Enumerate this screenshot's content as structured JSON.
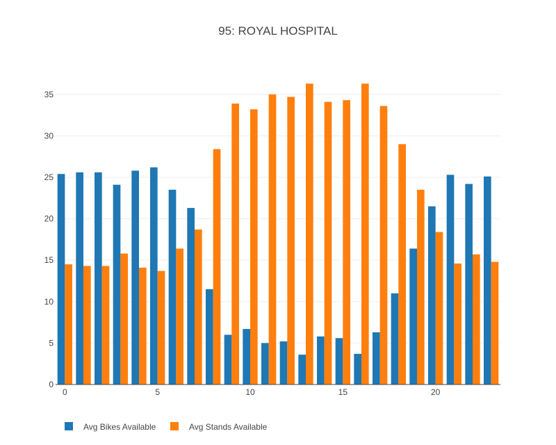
{
  "chart_data": {
    "type": "bar",
    "title": "95: ROYAL HOSPITAL",
    "xlabel": "",
    "ylabel": "",
    "x": [
      0,
      1,
      2,
      3,
      4,
      5,
      6,
      7,
      8,
      9,
      10,
      11,
      12,
      13,
      14,
      15,
      16,
      17,
      18,
      19,
      20,
      21,
      22,
      23
    ],
    "x_ticks": [
      0,
      5,
      10,
      15,
      20
    ],
    "y_ticks": [
      0,
      5,
      10,
      15,
      20,
      25,
      30,
      35
    ],
    "xlim": [
      -0.5,
      23.5
    ],
    "ylim": [
      0,
      38
    ],
    "grid": "horizontal",
    "legend_placement": "bottom-left",
    "series": [
      {
        "name": "Avg Bikes Available",
        "color": "#1f77b4",
        "values": [
          25.4,
          25.6,
          25.6,
          24.1,
          25.8,
          26.2,
          23.5,
          21.3,
          11.5,
          6.0,
          6.7,
          5.0,
          5.2,
          3.6,
          5.8,
          5.6,
          3.7,
          6.3,
          11.0,
          16.4,
          21.5,
          25.3,
          24.2,
          25.1
        ]
      },
      {
        "name": "Avg Stands Available",
        "color": "#ff7f0e",
        "values": [
          14.5,
          14.3,
          14.3,
          15.8,
          14.1,
          13.7,
          16.4,
          18.7,
          28.4,
          33.9,
          33.2,
          35.0,
          34.7,
          36.3,
          34.1,
          34.3,
          36.3,
          33.6,
          29.0,
          23.5,
          18.4,
          14.6,
          15.7,
          14.8
        ]
      }
    ]
  }
}
